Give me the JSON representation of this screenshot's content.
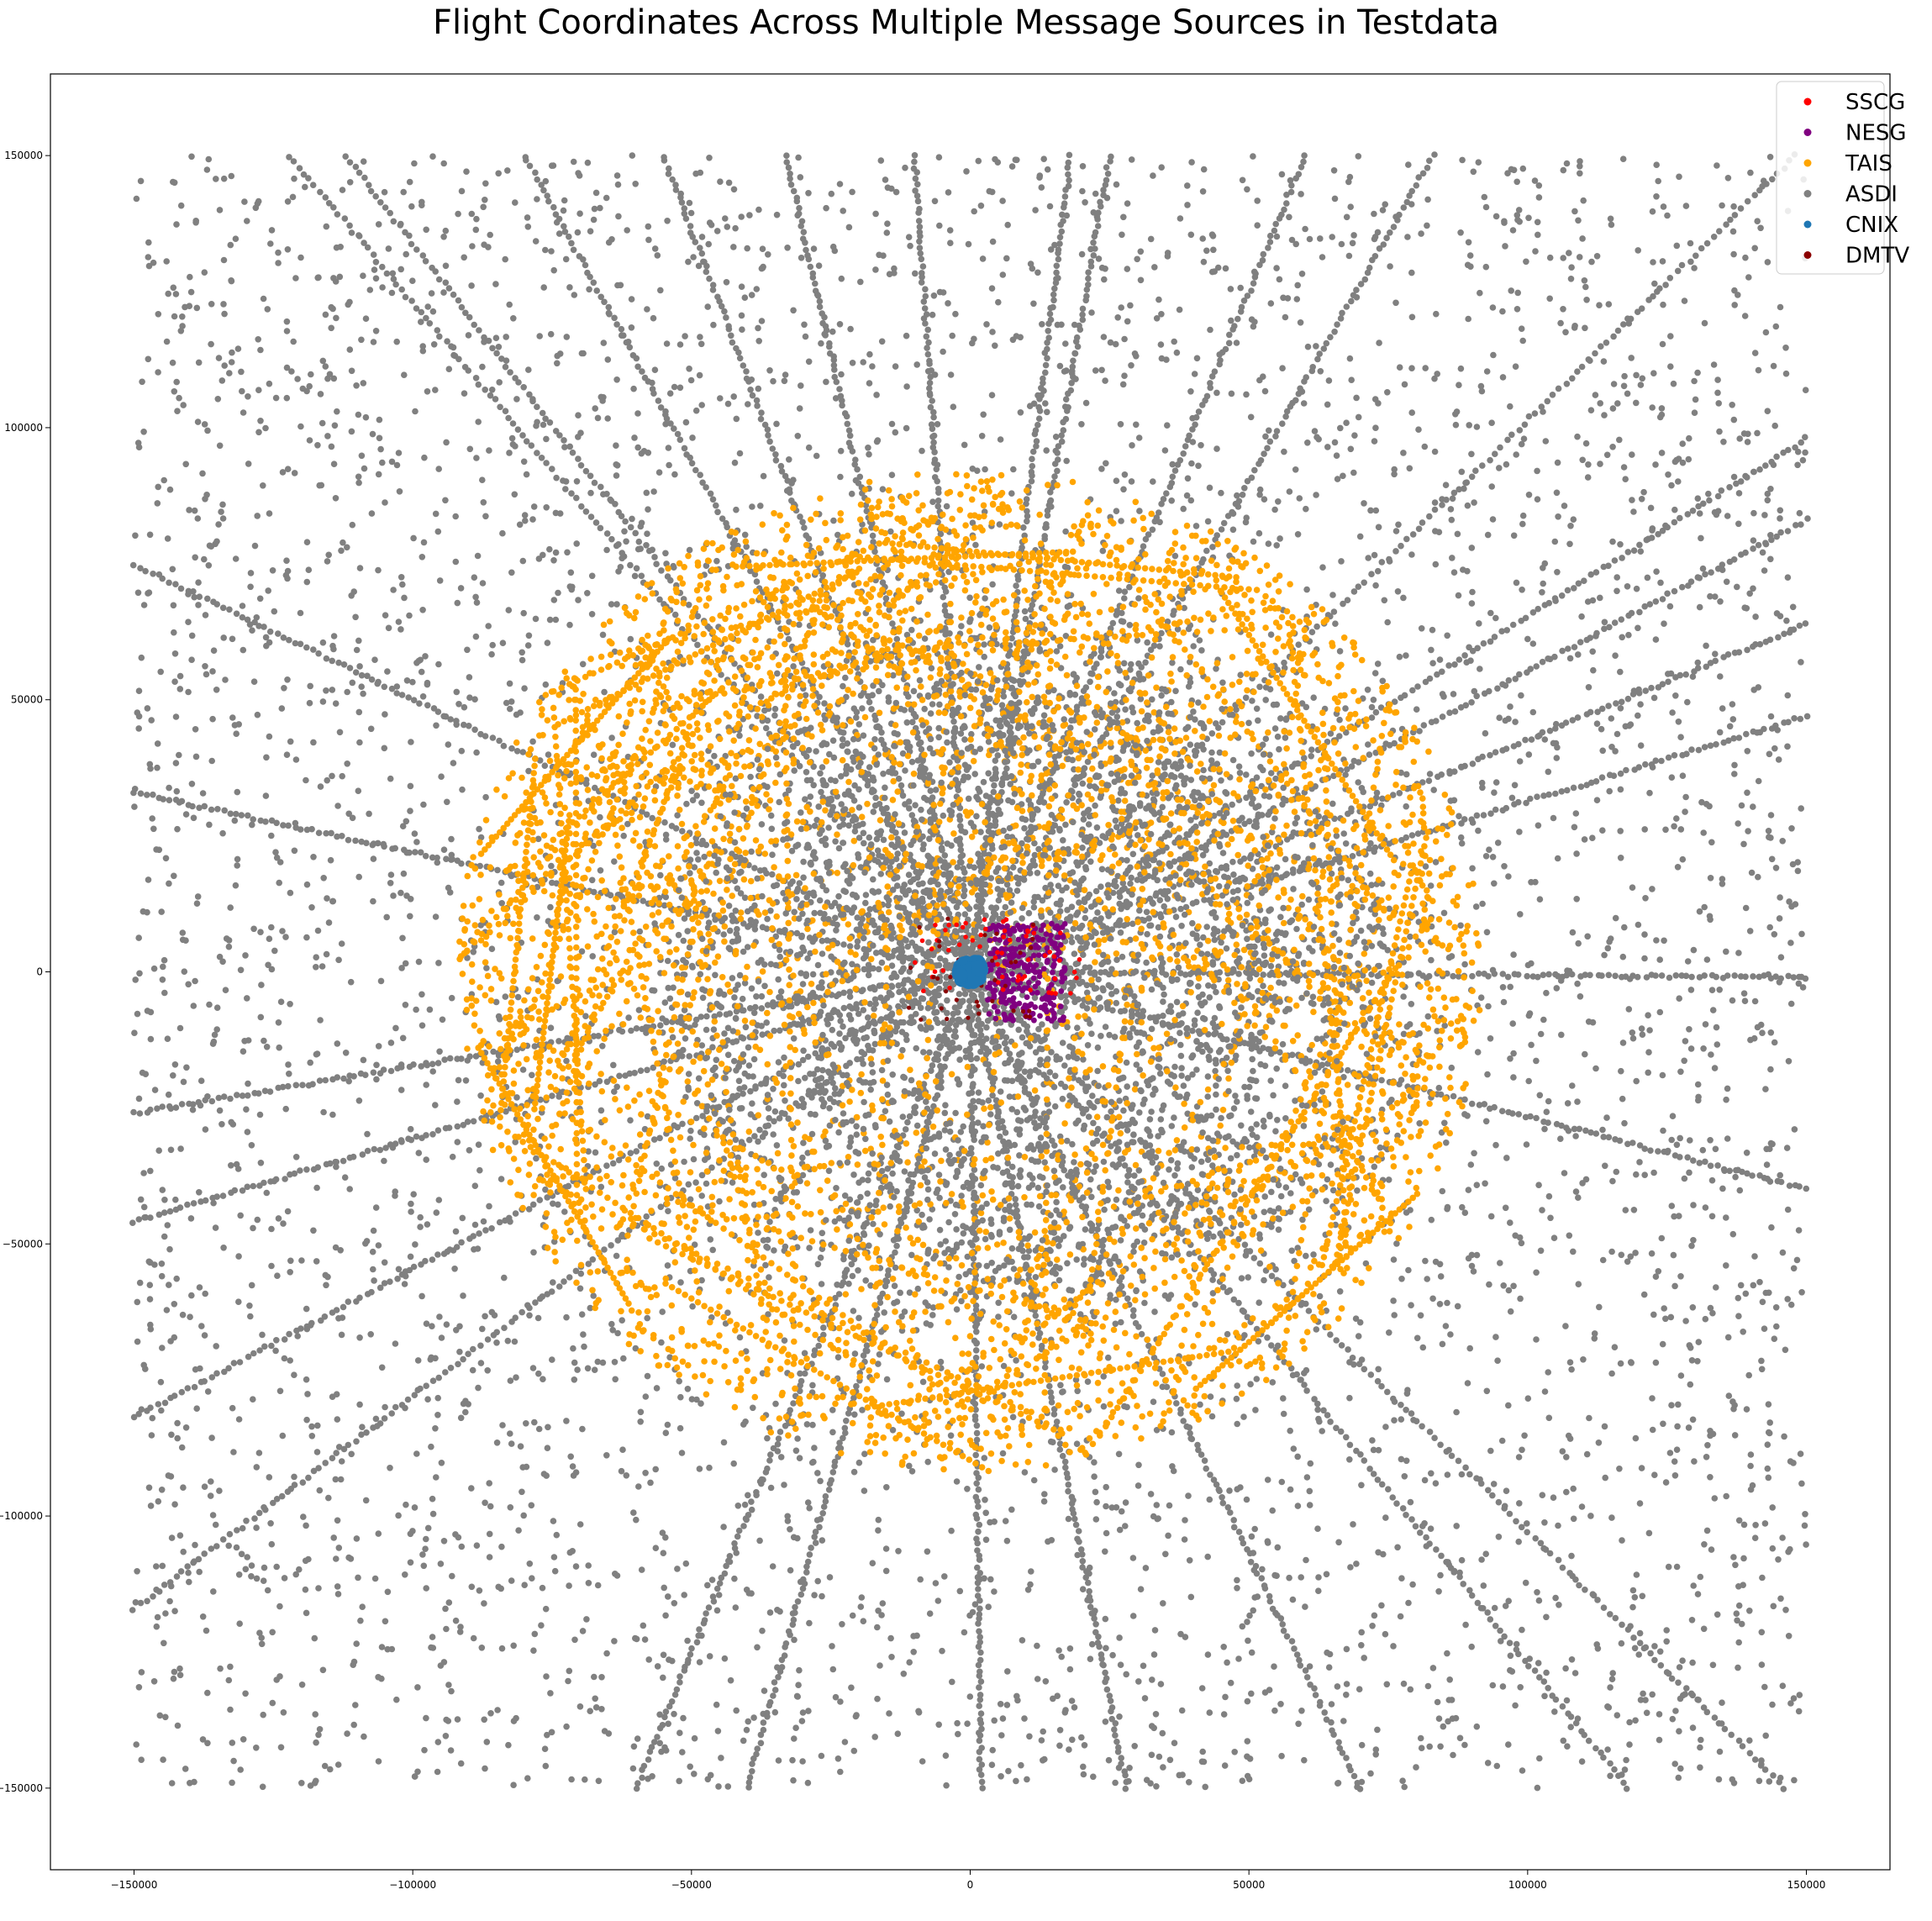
{
  "chart_data": {
    "type": "scatter",
    "title": "Flight Coordinates Across Multiple Message Sources in Testdata",
    "xlabel": "",
    "ylabel": "",
    "xlim": [
      -165000,
      165000
    ],
    "ylim": [
      -165000,
      165000
    ],
    "x_ticks": [
      -150000,
      -100000,
      -50000,
      0,
      50000,
      100000,
      150000
    ],
    "y_ticks": [
      -150000,
      -100000,
      -50000,
      0,
      50000,
      100000,
      150000
    ],
    "x_tick_labels": [
      "−150000",
      "−100000",
      "−50000",
      "0",
      "50000",
      "100000",
      "150000"
    ],
    "y_tick_labels": [
      "−150000",
      "−100000",
      "−50000",
      "0",
      "50000",
      "100000",
      "150000"
    ],
    "grid": false,
    "legend_position": "top-right",
    "series": [
      {
        "name": "SSCG",
        "color": "#ff0000",
        "distribution": "center-cluster",
        "extent": 15000,
        "center": [
          5000,
          3000
        ]
      },
      {
        "name": "NESG",
        "color": "#800080",
        "distribution": "center-cluster",
        "extent": 20000,
        "center": [
          10000,
          0
        ]
      },
      {
        "name": "TAIS",
        "color": "#ffa500",
        "distribution": "ring-tracks",
        "extent": 92000,
        "center": [
          0,
          0
        ]
      },
      {
        "name": "ASDI",
        "color": "#808080",
        "distribution": "square-scatter-with-radial-tracks",
        "extent": 150000,
        "center": [
          0,
          0
        ]
      },
      {
        "name": "CNIX",
        "color": "#1f77b4",
        "distribution": "point",
        "extent": 0,
        "center": [
          0,
          0
        ]
      },
      {
        "name": "DMTV",
        "color": "#8b0000",
        "distribution": "center-cluster",
        "extent": 12000,
        "center": [
          0,
          0
        ]
      }
    ],
    "asdi_tracks": [
      [
        [
          -150000,
          75000
        ],
        [
          0,
          0
        ]
      ],
      [
        [
          -150000,
          -46000
        ],
        [
          0,
          0
        ]
      ],
      [
        [
          -150000,
          -117000
        ],
        [
          0,
          0
        ]
      ],
      [
        [
          -150000,
          -82000
        ],
        [
          0,
          0
        ]
      ],
      [
        [
          -150000,
          -26000
        ],
        [
          0,
          0
        ]
      ],
      [
        [
          -150000,
          33000
        ],
        [
          0,
          0
        ]
      ],
      [
        [
          -122000,
          150000
        ],
        [
          0,
          0
        ]
      ],
      [
        [
          -112000,
          150000
        ],
        [
          0,
          0
        ]
      ],
      [
        [
          -80000,
          150000
        ],
        [
          0,
          0
        ]
      ],
      [
        [
          -55000,
          150000
        ],
        [
          0,
          0
        ]
      ],
      [
        [
          -33000,
          150000
        ],
        [
          0,
          0
        ]
      ],
      [
        [
          -10000,
          150000
        ],
        [
          0,
          0
        ]
      ],
      [
        [
          18000,
          150000
        ],
        [
          0,
          0
        ]
      ],
      [
        [
          25000,
          150000
        ],
        [
          0,
          0
        ]
      ],
      [
        [
          60000,
          150000
        ],
        [
          0,
          0
        ]
      ],
      [
        [
          83000,
          150000
        ],
        [
          0,
          0
        ]
      ],
      [
        [
          148000,
          150000
        ],
        [
          0,
          0
        ]
      ],
      [
        [
          150000,
          98000
        ],
        [
          0,
          0
        ]
      ],
      [
        [
          150000,
          83000
        ],
        [
          0,
          0
        ]
      ],
      [
        [
          150000,
          64000
        ],
        [
          0,
          0
        ]
      ],
      [
        [
          150000,
          47000
        ],
        [
          0,
          0
        ]
      ],
      [
        [
          150000,
          -1000
        ],
        [
          0,
          0
        ]
      ],
      [
        [
          150000,
          -40000
        ],
        [
          0,
          0
        ]
      ],
      [
        [
          146000,
          -150000
        ],
        [
          0,
          0
        ]
      ],
      [
        [
          118000,
          -150000
        ],
        [
          0,
          0
        ]
      ],
      [
        [
          70000,
          -150000
        ],
        [
          0,
          0
        ]
      ],
      [
        [
          28000,
          -150000
        ],
        [
          0,
          0
        ]
      ],
      [
        [
          2000,
          -150000
        ],
        [
          0,
          0
        ]
      ],
      [
        [
          -40000,
          -150000
        ],
        [
          0,
          0
        ]
      ],
      [
        [
          -60000,
          -150000
        ],
        [
          0,
          0
        ]
      ]
    ]
  }
}
